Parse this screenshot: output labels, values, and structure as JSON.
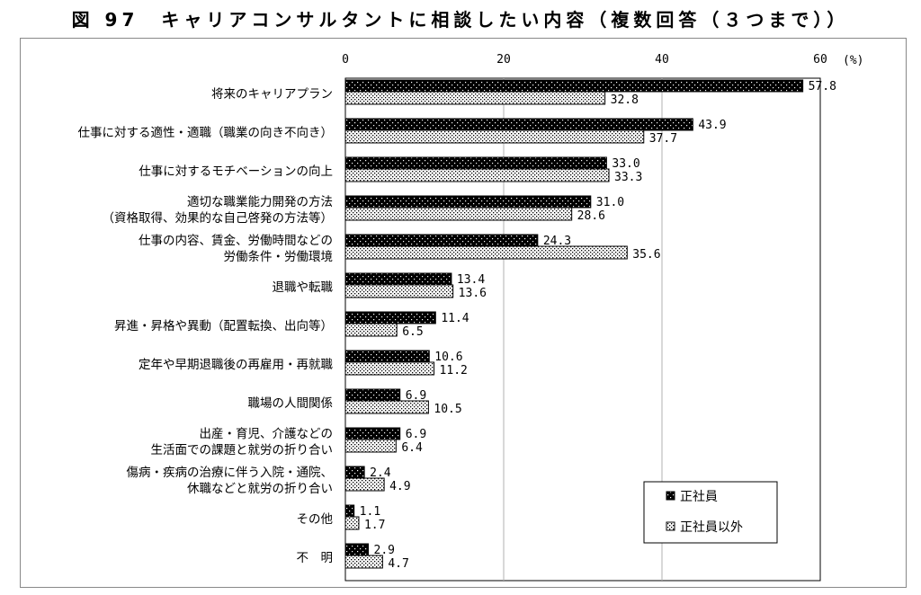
{
  "title": "図 97　キャリアコンサルタントに相談したい内容（複数回答（３つまで））",
  "chart_data": {
    "type": "bar",
    "orientation": "horizontal",
    "unit_label": "(%)",
    "xlim": [
      0,
      60
    ],
    "ticks": [
      0,
      20,
      40,
      60
    ],
    "grid": true,
    "legend_position": "bottom-right",
    "categories": [
      [
        "将来のキャリアプラン"
      ],
      [
        "仕事に対する適性・適職（職業の向き不向き）"
      ],
      [
        "仕事に対するモチベーションの向上"
      ],
      [
        "適切な職業能力開発の方法",
        "（資格取得、効果的な自己啓発の方法等）"
      ],
      [
        "仕事の内容、賃金、労働時間などの",
        "労働条件・労働環境"
      ],
      [
        "退職や転職"
      ],
      [
        "昇進・昇格や異動（配置転換、出向等）"
      ],
      [
        "定年や早期退職後の再雇用・再就職"
      ],
      [
        "職場の人間関係"
      ],
      [
        "出産・育児、介護などの",
        "生活面での課題と就労の折り合い"
      ],
      [
        "傷病・疾病の治療に伴う入院・通院、",
        "休職などと就労の折り合い"
      ],
      [
        "その他"
      ],
      [
        "不　明"
      ]
    ],
    "series": [
      {
        "name": "正社員",
        "color": "#000000",
        "values": [
          57.8,
          43.9,
          33.0,
          31.0,
          24.3,
          13.4,
          11.4,
          10.6,
          6.9,
          6.9,
          2.4,
          1.1,
          2.9
        ],
        "labels": [
          "57.8",
          "43.9",
          "33.0",
          "31.0",
          "24.3",
          "13.4",
          "11.4",
          "10.6",
          "6.9",
          "6.9",
          "2.4",
          "1.1",
          "2.9"
        ]
      },
      {
        "name": "正社員以外",
        "color": "#ffffff",
        "values": [
          32.8,
          37.7,
          33.3,
          28.6,
          35.6,
          13.6,
          6.5,
          11.2,
          10.5,
          6.4,
          4.9,
          1.7,
          4.7
        ],
        "labels": [
          "32.8",
          "37.7",
          "33.3",
          "28.6",
          "35.6",
          "13.6",
          "6.5",
          "11.2",
          "10.5",
          "6.4",
          "4.9",
          "1.7",
          "4.7"
        ]
      }
    ]
  }
}
